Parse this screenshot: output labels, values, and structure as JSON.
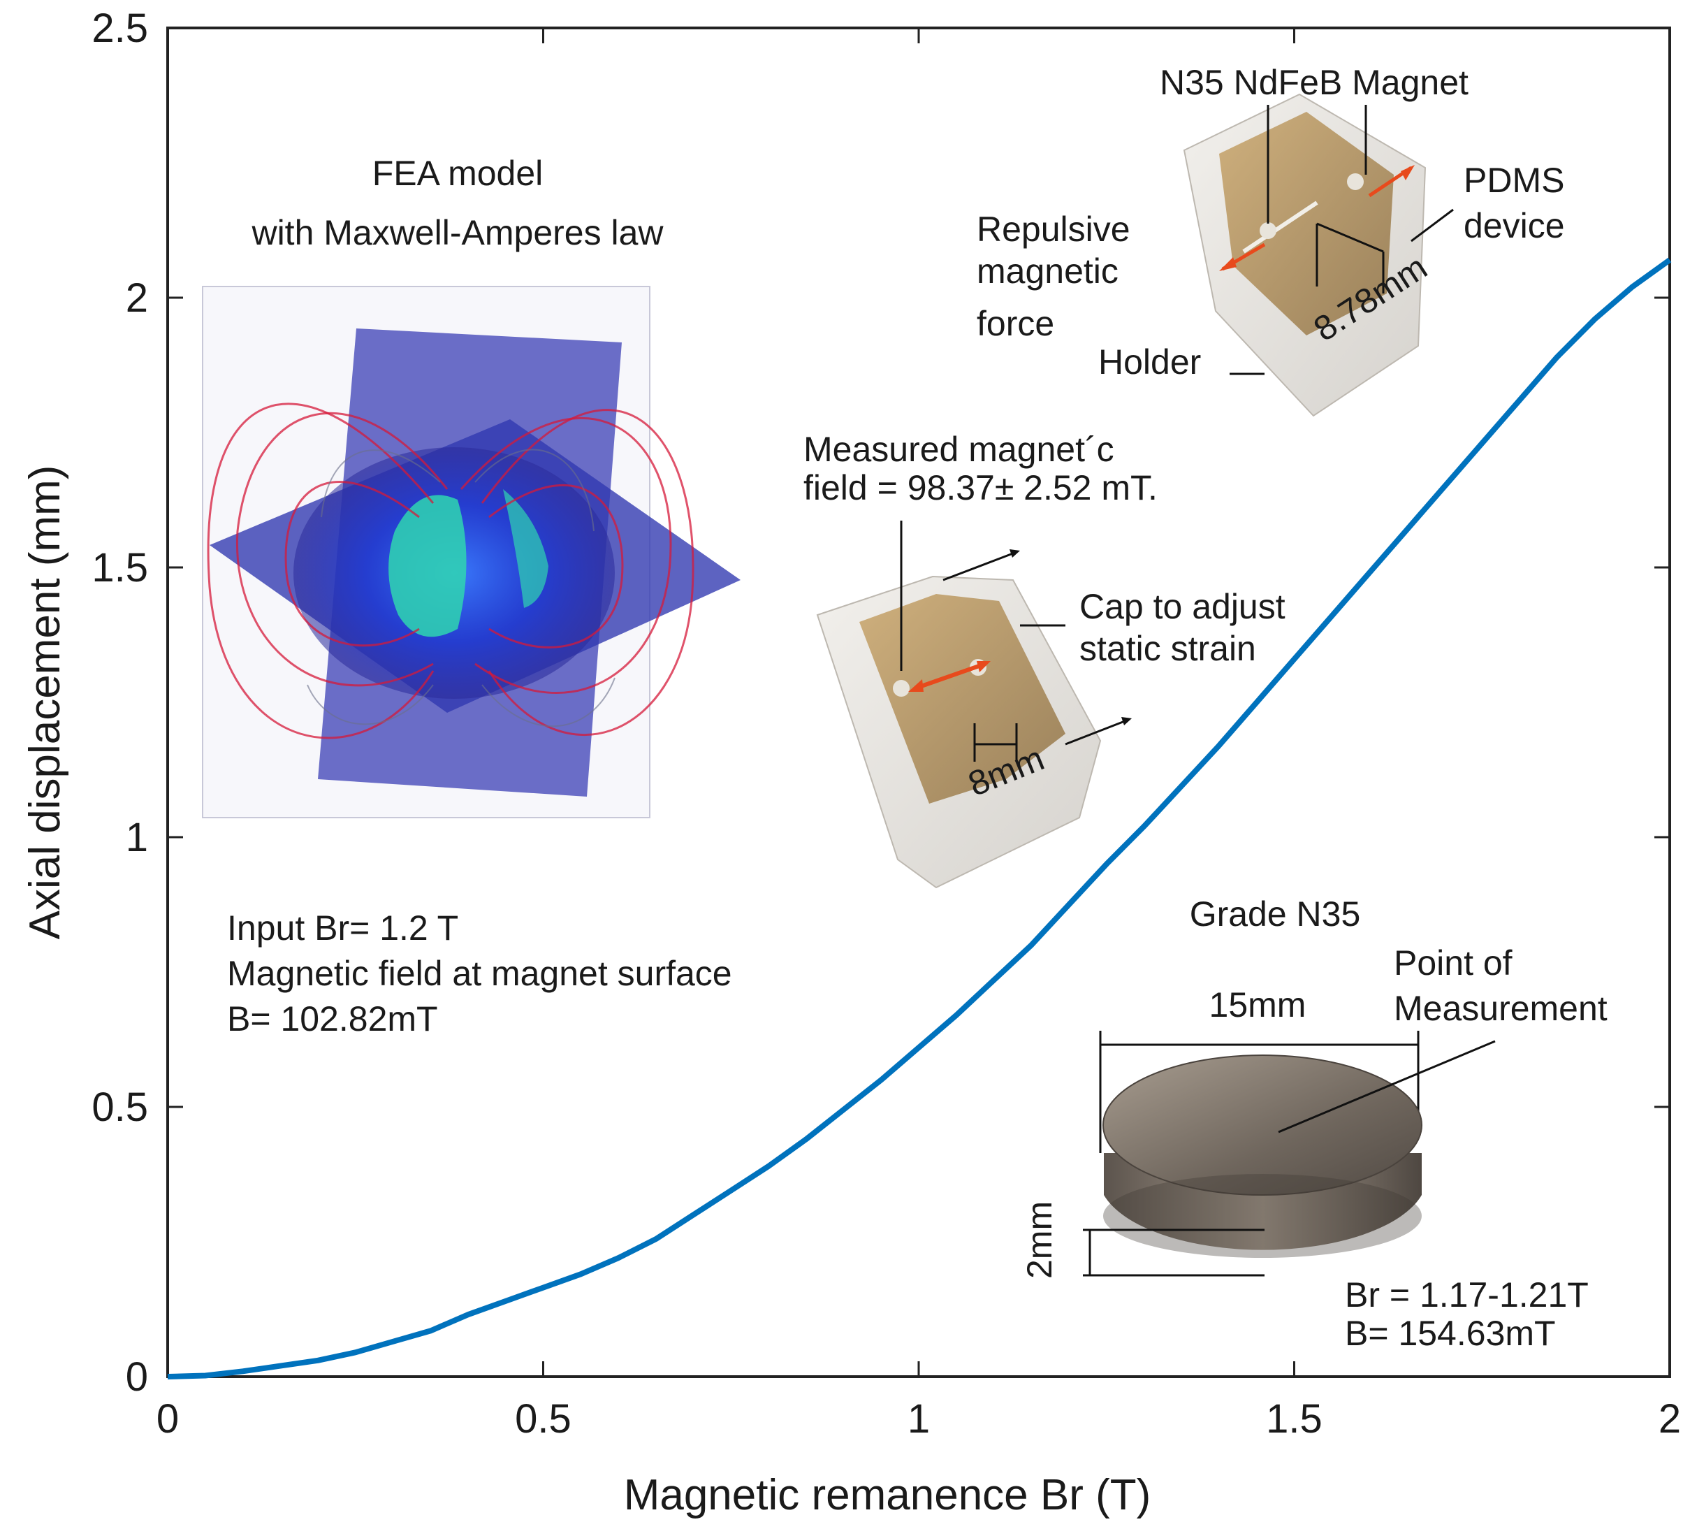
{
  "chart_data": {
    "type": "line",
    "title": "",
    "xlabel": "Magnetic remanence Br (T)",
    "ylabel": "Axial displacement (mm)",
    "xlim": [
      0,
      2
    ],
    "ylim": [
      0,
      2.5
    ],
    "x_ticks": [
      "0",
      "0.5",
      "1",
      "1.5",
      "2"
    ],
    "y_ticks": [
      "0",
      "0.5",
      "1",
      "1.5",
      "2",
      "2.5"
    ],
    "grid": false,
    "series": [
      {
        "name": "Axial displacement",
        "color": "#0072bd",
        "x": [
          0,
          0.05,
          0.1,
          0.15,
          0.2,
          0.25,
          0.3,
          0.35,
          0.4,
          0.45,
          0.5,
          0.55,
          0.6,
          0.65,
          0.7,
          0.75,
          0.8,
          0.85,
          0.9,
          0.95,
          1.0,
          1.05,
          1.1,
          1.15,
          1.2,
          1.25,
          1.3,
          1.35,
          1.4,
          1.45,
          1.5,
          1.55,
          1.6,
          1.65,
          1.7,
          1.75,
          1.8,
          1.85,
          1.9,
          1.95,
          2.0
        ],
        "y": [
          0,
          0.002,
          0.01,
          0.02,
          0.03,
          0.045,
          0.065,
          0.085,
          0.115,
          0.14,
          0.165,
          0.19,
          0.22,
          0.255,
          0.3,
          0.345,
          0.39,
          0.44,
          0.495,
          0.55,
          0.61,
          0.67,
          0.735,
          0.8,
          0.875,
          0.95,
          1.02,
          1.095,
          1.17,
          1.25,
          1.33,
          1.41,
          1.49,
          1.57,
          1.65,
          1.73,
          1.81,
          1.89,
          1.96,
          2.02,
          2.07
        ]
      }
    ],
    "annotations": {
      "fea_title_line1": "FEA model",
      "fea_title_line2": "with Maxwell-Amperes law",
      "fea_input_line1": "Input Br= 1.2 T",
      "fea_input_line2": "Magnetic field at magnet surface",
      "fea_input_line3": "B= 102.82mT",
      "device_magnet": "N35 NdFeB Magnet",
      "device_pdms_line1": "PDMS",
      "device_pdms_line2": "device",
      "device_force_line1": "Repulsive",
      "device_force_line2": "magnetic",
      "device_force_line3": "force",
      "device_holder": "Holder",
      "device_dimension": "8.78mm",
      "measured_line1": "Measured magnet´c",
      "measured_line2": "field = 98.37± 2.52  mT.",
      "cap_line1": "Cap to adjust",
      "cap_line2": "static strain",
      "cap_dimension": "8mm",
      "grade": "Grade N35",
      "point_line1": "Point of",
      "point_line2": "Measurement",
      "magnet_diameter": "15mm",
      "magnet_thickness": "2mm",
      "magnet_br": "Br = 1.17-1.21T",
      "magnet_b": "B= 154.63mT"
    }
  }
}
